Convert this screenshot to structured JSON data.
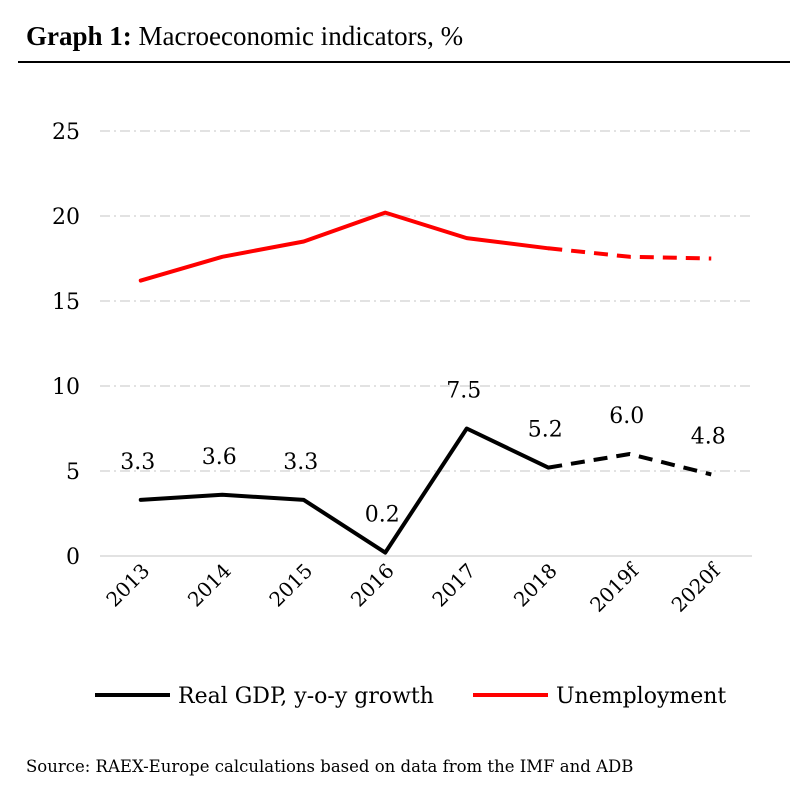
{
  "title": {
    "bold": "Graph 1:",
    "rest": "Macroeconomic indicators, %"
  },
  "source": "Source: RAEX-Europe calculations based on data from the IMF and ADB",
  "colors": {
    "gdp": "#000000",
    "unemployment": "#ff0000",
    "grid": "#d9d9d9"
  },
  "chart_data": {
    "type": "line",
    "title": "Graph 1: Macroeconomic indicators, %",
    "xlabel": "",
    "ylabel": "",
    "categories": [
      "2013",
      "2014",
      "2015",
      "2016",
      "2017",
      "2018",
      "2019f",
      "2020f"
    ],
    "ylim": [
      0,
      25
    ],
    "yticks": [
      "0",
      "5",
      "10",
      "15",
      "20",
      "25"
    ],
    "grid": "horizontal dashed",
    "legend_position": "bottom",
    "forecast_from_index": 5,
    "series": [
      {
        "name": "Real GDP, y-o-y growth",
        "color": "#000000",
        "values": [
          3.3,
          3.6,
          3.3,
          0.2,
          7.5,
          5.2,
          6.0,
          4.8
        ],
        "labels": [
          "3.3",
          "3.6",
          "3.3",
          "0.2",
          "7.5",
          "5.2",
          "6.0",
          "4.8"
        ],
        "dashed_forecast": true
      },
      {
        "name": "Unemployment",
        "color": "#ff0000",
        "values": [
          16.2,
          17.6,
          18.5,
          20.2,
          18.7,
          18.1,
          17.6,
          17.5
        ],
        "dashed_forecast": true
      }
    ]
  }
}
